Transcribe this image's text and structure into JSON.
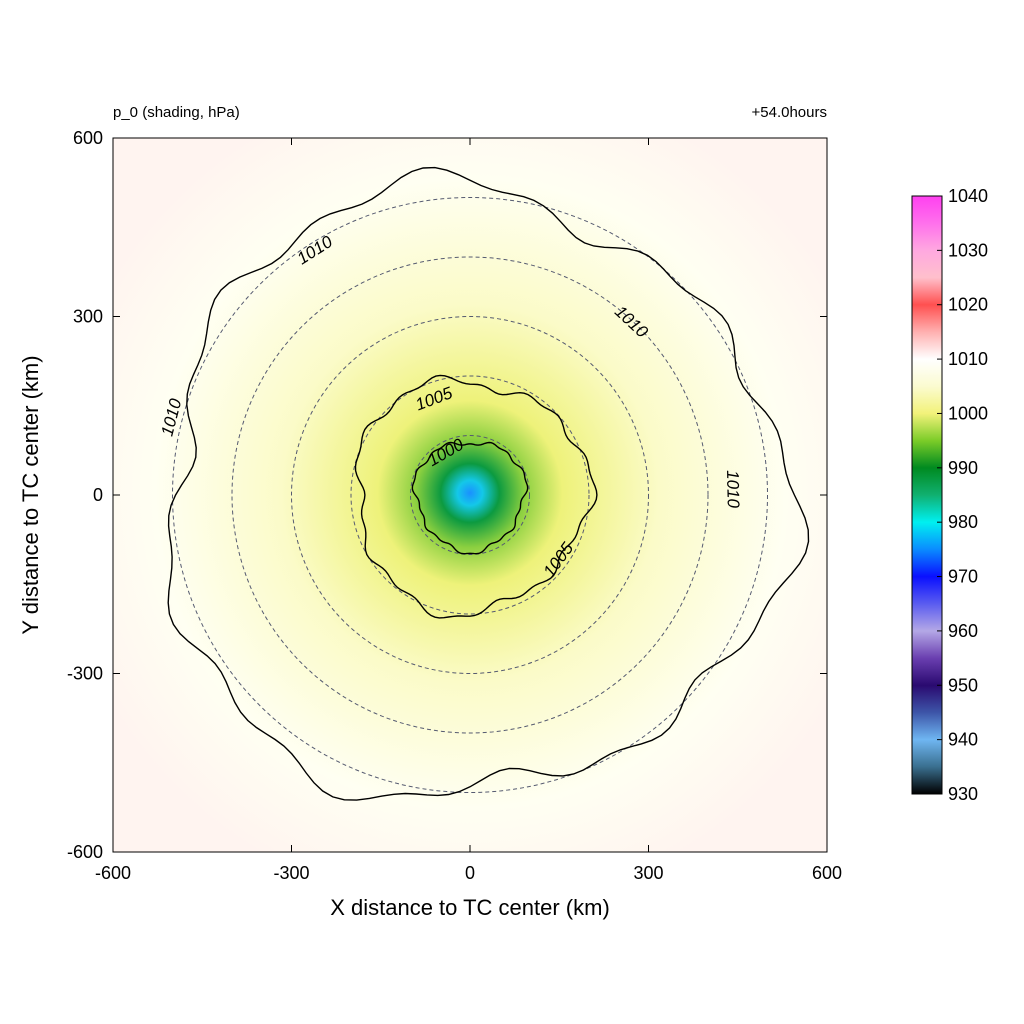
{
  "chart_data": {
    "type": "heatmap",
    "title_left": "p_0 (shading, hPa)",
    "title_right": "+54.0hours",
    "xlabel": "X distance to TC center (km)",
    "ylabel": "Y distance to TC center (km)",
    "xlim": [
      -600,
      600
    ],
    "ylim": [
      -600,
      600
    ],
    "xticks": [
      "-600",
      "-300",
      "0",
      "300",
      "600"
    ],
    "yticks": [
      "-600",
      "-300",
      "0",
      "300",
      "600"
    ],
    "center_pressure_hPa": 975,
    "environment_pressure_hPa": 1011,
    "colorbar": {
      "min": 930,
      "max": 1040,
      "ticks": [
        "930",
        "940",
        "950",
        "960",
        "970",
        "980",
        "990",
        "1000",
        "1010",
        "1020",
        "1030",
        "1040"
      ],
      "stops": [
        {
          "value": 930,
          "color": "#000000"
        },
        {
          "value": 935,
          "color": "#3a6f8f"
        },
        {
          "value": 940,
          "color": "#6fb6f2"
        },
        {
          "value": 945,
          "color": "#3d55a8"
        },
        {
          "value": 950,
          "color": "#2a0a70"
        },
        {
          "value": 955,
          "color": "#6a3fb0"
        },
        {
          "value": 960,
          "color": "#b4a8e6"
        },
        {
          "value": 965,
          "color": "#5a5cf0"
        },
        {
          "value": 970,
          "color": "#0a10ff"
        },
        {
          "value": 975,
          "color": "#0a8cff"
        },
        {
          "value": 980,
          "color": "#00f0f0"
        },
        {
          "value": 985,
          "color": "#10b070"
        },
        {
          "value": 990,
          "color": "#008a20"
        },
        {
          "value": 995,
          "color": "#7ccc28"
        },
        {
          "value": 1000,
          "color": "#f2f27a"
        },
        {
          "value": 1005,
          "color": "#fbfbd0"
        },
        {
          "value": 1010,
          "color": "#ffffff"
        },
        {
          "value": 1015,
          "color": "#ffb0b0"
        },
        {
          "value": 1020,
          "color": "#ff5050"
        },
        {
          "value": 1025,
          "color": "#ffc0cc"
        },
        {
          "value": 1030,
          "color": "#ffa8e0"
        },
        {
          "value": 1035,
          "color": "#ff70ec"
        },
        {
          "value": 1040,
          "color": "#ff40f0"
        }
      ]
    },
    "range_rings_km": [
      100,
      200,
      300,
      400,
      500
    ],
    "contours": [
      {
        "level": "1000",
        "radius_km": 92
      },
      {
        "level": "1005",
        "radius_km": 195
      },
      {
        "level": "1010",
        "radius_km": 520
      }
    ],
    "contour_labels": [
      {
        "text": "1000",
        "x_km": -40,
        "y_km": 70
      },
      {
        "text": "1005",
        "x_km": -60,
        "y_km": 160
      },
      {
        "text": "1005",
        "x_km": 150,
        "y_km": -110
      },
      {
        "text": "1010",
        "x_km": -260,
        "y_km": 410
      },
      {
        "text": "1010",
        "x_km": 270,
        "y_km": 290
      },
      {
        "text": "1010",
        "x_km": -500,
        "y_km": 130
      },
      {
        "text": "1010",
        "x_km": 440,
        "y_km": 10
      }
    ]
  }
}
